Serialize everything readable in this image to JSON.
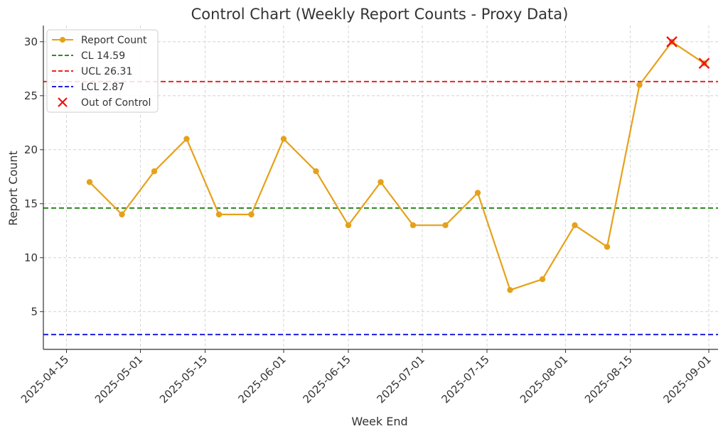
{
  "chart_data": {
    "type": "line",
    "title": "Control Chart (Weekly Report Counts - Proxy Data)",
    "xlabel": "Week End",
    "ylabel": "Report Count",
    "xlim": [
      "2025-04-10",
      "2025-09-03"
    ],
    "ylim": [
      1.5,
      31.5
    ],
    "x_ticks": [
      "2025-04-15",
      "2025-05-01",
      "2025-05-15",
      "2025-06-01",
      "2025-06-15",
      "2025-07-01",
      "2025-07-15",
      "2025-08-01",
      "2025-08-15",
      "2025-09-01"
    ],
    "y_ticks": [
      5,
      10,
      15,
      20,
      25,
      30
    ],
    "grid": true,
    "legend_position": "top-left",
    "series": [
      {
        "name": "Report Count",
        "color": "#e6a11a",
        "x": [
          "2025-04-20",
          "2025-04-27",
          "2025-05-04",
          "2025-05-11",
          "2025-05-18",
          "2025-05-25",
          "2025-06-01",
          "2025-06-08",
          "2025-06-15",
          "2025-06-22",
          "2025-06-29",
          "2025-07-06",
          "2025-07-13",
          "2025-07-20",
          "2025-07-27",
          "2025-08-03",
          "2025-08-10",
          "2025-08-17",
          "2025-08-24",
          "2025-08-31"
        ],
        "values": [
          17,
          14,
          18,
          21,
          14,
          14,
          21,
          18,
          13,
          17,
          13,
          13,
          16,
          7,
          8,
          13,
          11,
          26,
          30,
          28
        ]
      }
    ],
    "reference_lines": [
      {
        "name": "CL 14.59",
        "value": 14.59,
        "color": "#2e8b22",
        "style": "dashed"
      },
      {
        "name": "UCL 26.31",
        "value": 26.31,
        "color": "#ee2222",
        "style": "dashed"
      },
      {
        "name": "LCL 2.87",
        "value": 2.87,
        "color": "#1f1fdd",
        "style": "dashed"
      }
    ],
    "out_of_control": {
      "name": "Out of Control",
      "color": "#ee1111",
      "marker": "x",
      "x": [
        "2025-08-24",
        "2025-08-31"
      ],
      "values": [
        30,
        28
      ]
    }
  }
}
